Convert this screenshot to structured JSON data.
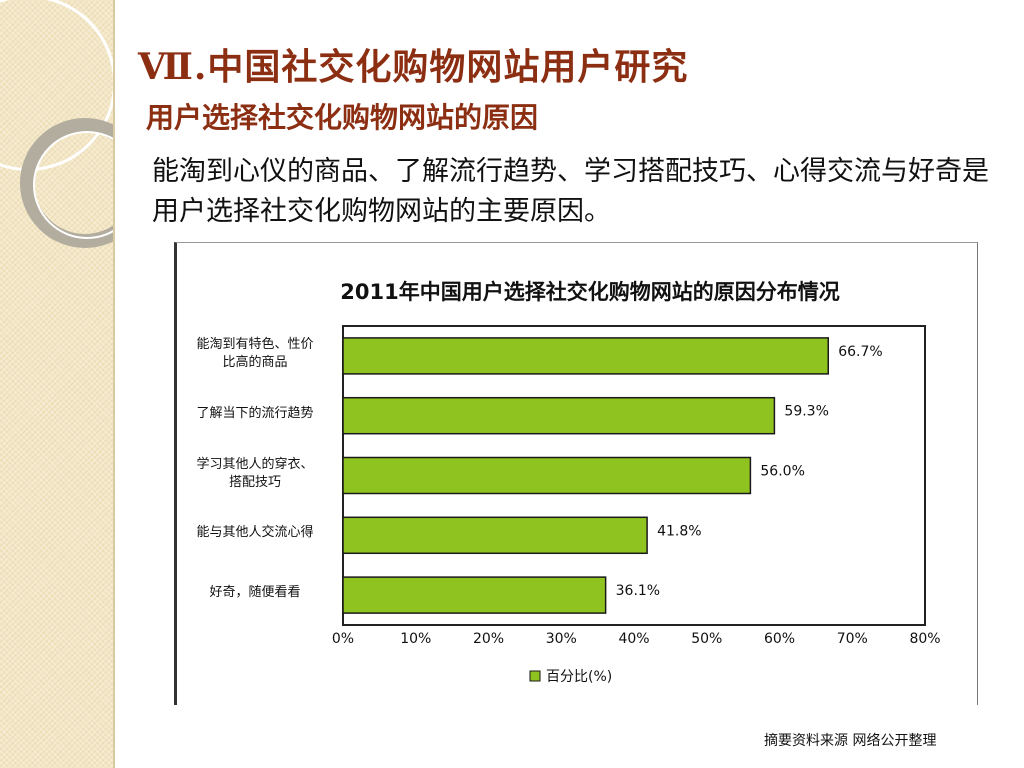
{
  "slide": {
    "title": "Ⅶ.中国社交化购物网站用户研究",
    "subtitle": "用户选择社交化购物网站的原因",
    "body": "能淘到心仪的商品、了解流行趋势、学习搭配技巧、心得交流与好奇是用户选择社交化购物网站的主要原因。",
    "footer_note": "摘要资料来源 网络公开整理"
  },
  "chart_data": {
    "type": "bar",
    "orientation": "horizontal",
    "title": "2011年中国用户选择社交化购物网站的原因分布情况",
    "categories": [
      "能淘到有特色、性价比高的商品",
      "了解当下的流行趋势",
      "学习其他人的穿衣、搭配技巧",
      "能与其他人交流心得",
      "好奇，随便看看"
    ],
    "category_lines": [
      [
        "能淘到有特色、性价",
        "比高的商品"
      ],
      [
        "了解当下的流行趋势"
      ],
      [
        "学习其他人的穿衣、",
        "搭配技巧"
      ],
      [
        "能与其他人交流心得"
      ],
      [
        "好奇，随便看看"
      ]
    ],
    "series": [
      {
        "name": "百分比(%)",
        "values": [
          66.7,
          59.3,
          56.0,
          41.8,
          36.1
        ]
      }
    ],
    "value_labels": [
      "66.7%",
      "59.3%",
      "56.0%",
      "41.8%",
      "36.1%"
    ],
    "xlim": [
      0,
      80
    ],
    "xticks": [
      0,
      10,
      20,
      30,
      40,
      50,
      60,
      70,
      80
    ],
    "xtick_labels": [
      "0%",
      "10%",
      "20%",
      "30%",
      "40%",
      "50%",
      "60%",
      "70%",
      "80%"
    ],
    "grid": false,
    "legend": "bottom",
    "colors": {
      "bar_fill": "#8fc31f",
      "bar_stroke": "#1a1a1a",
      "axis": "#222222"
    }
  },
  "theme": {
    "title_color": "#8c2e12",
    "strip_color": "#f3e6c4"
  }
}
